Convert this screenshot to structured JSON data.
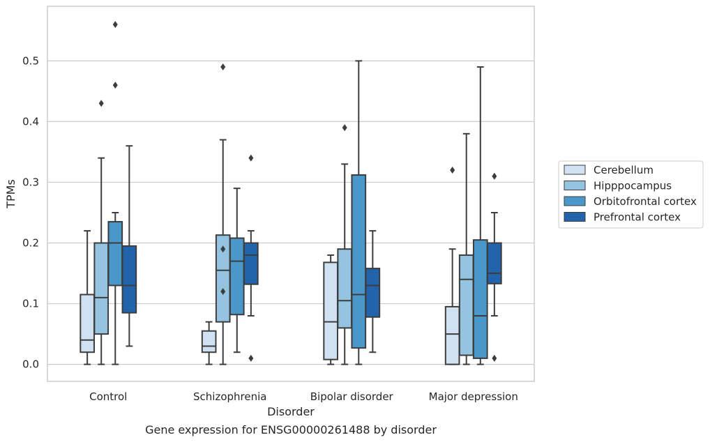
{
  "chart_data": {
    "type": "box",
    "caption": "Gene expression for ENSG00000261488 by disorder",
    "xlabel": "Disorder",
    "ylabel": "TPMs",
    "categories": [
      "Control",
      "Schizophrenia",
      "Bipolar disorder",
      "Major depression"
    ],
    "ylim": [
      -0.028,
      0.59
    ],
    "yticks": [
      "0.0",
      "0.1",
      "0.2",
      "0.3",
      "0.4",
      "0.5"
    ],
    "grid": "horizontal",
    "legend_position": "right",
    "series": [
      {
        "name": "Cerebellum",
        "color": "#d0e1f2",
        "boxes": [
          {
            "whisker_low": 0.0,
            "q1": 0.02,
            "median": 0.04,
            "q3": 0.115,
            "whisker_high": 0.22,
            "outliers": []
          },
          {
            "whisker_low": 0.0,
            "q1": 0.02,
            "median": 0.03,
            "q3": 0.055,
            "whisker_high": 0.07,
            "outliers": []
          },
          {
            "whisker_low": 0.0,
            "q1": 0.008,
            "median": 0.07,
            "q3": 0.168,
            "whisker_high": 0.18,
            "outliers": []
          },
          {
            "whisker_low": 0.0,
            "q1": 0.0,
            "median": 0.05,
            "q3": 0.095,
            "whisker_high": 0.19,
            "outliers": [
              0.32
            ]
          }
        ]
      },
      {
        "name": "Hipppocampus",
        "color": "#94c4df",
        "boxes": [
          {
            "whisker_low": 0.0,
            "q1": 0.05,
            "median": 0.11,
            "q3": 0.2,
            "whisker_high": 0.34,
            "outliers": [
              0.43
            ]
          },
          {
            "whisker_low": 0.0,
            "q1": 0.07,
            "median": 0.155,
            "q3": 0.213,
            "whisker_high": 0.37,
            "outliers": [
              0.49,
              0.12,
              0.19
            ]
          },
          {
            "whisker_low": 0.0,
            "q1": 0.06,
            "median": 0.105,
            "q3": 0.19,
            "whisker_high": 0.33,
            "outliers": [
              0.39
            ]
          },
          {
            "whisker_low": 0.0,
            "q1": 0.015,
            "median": 0.14,
            "q3": 0.18,
            "whisker_high": 0.38,
            "outliers": []
          }
        ]
      },
      {
        "name": "Orbitofrontal cortex",
        "color": "#4a98c9",
        "boxes": [
          {
            "whisker_low": 0.0,
            "q1": 0.13,
            "median": 0.2,
            "q3": 0.235,
            "whisker_high": 0.25,
            "outliers": [
              0.56,
              0.46
            ]
          },
          {
            "whisker_low": 0.02,
            "q1": 0.082,
            "median": 0.17,
            "q3": 0.208,
            "whisker_high": 0.29,
            "outliers": []
          },
          {
            "whisker_low": 0.0,
            "q1": 0.027,
            "median": 0.115,
            "q3": 0.312,
            "whisker_high": 0.5,
            "outliers": []
          },
          {
            "whisker_low": 0.0,
            "q1": 0.01,
            "median": 0.08,
            "q3": 0.205,
            "whisker_high": 0.49,
            "outliers": []
          }
        ]
      },
      {
        "name": "Prefrontal cortex",
        "color": "#2164ab",
        "boxes": [
          {
            "whisker_low": 0.03,
            "q1": 0.085,
            "median": 0.13,
            "q3": 0.195,
            "whisker_high": 0.36,
            "outliers": []
          },
          {
            "whisker_low": 0.08,
            "q1": 0.132,
            "median": 0.18,
            "q3": 0.2,
            "whisker_high": 0.22,
            "outliers": [
              0.34,
              0.01
            ]
          },
          {
            "whisker_low": 0.02,
            "q1": 0.078,
            "median": 0.13,
            "q3": 0.158,
            "whisker_high": 0.22,
            "outliers": []
          },
          {
            "whisker_low": 0.08,
            "q1": 0.133,
            "median": 0.15,
            "q3": 0.2,
            "whisker_high": 0.25,
            "outliers": [
              0.31,
              0.01
            ]
          }
        ]
      }
    ]
  }
}
